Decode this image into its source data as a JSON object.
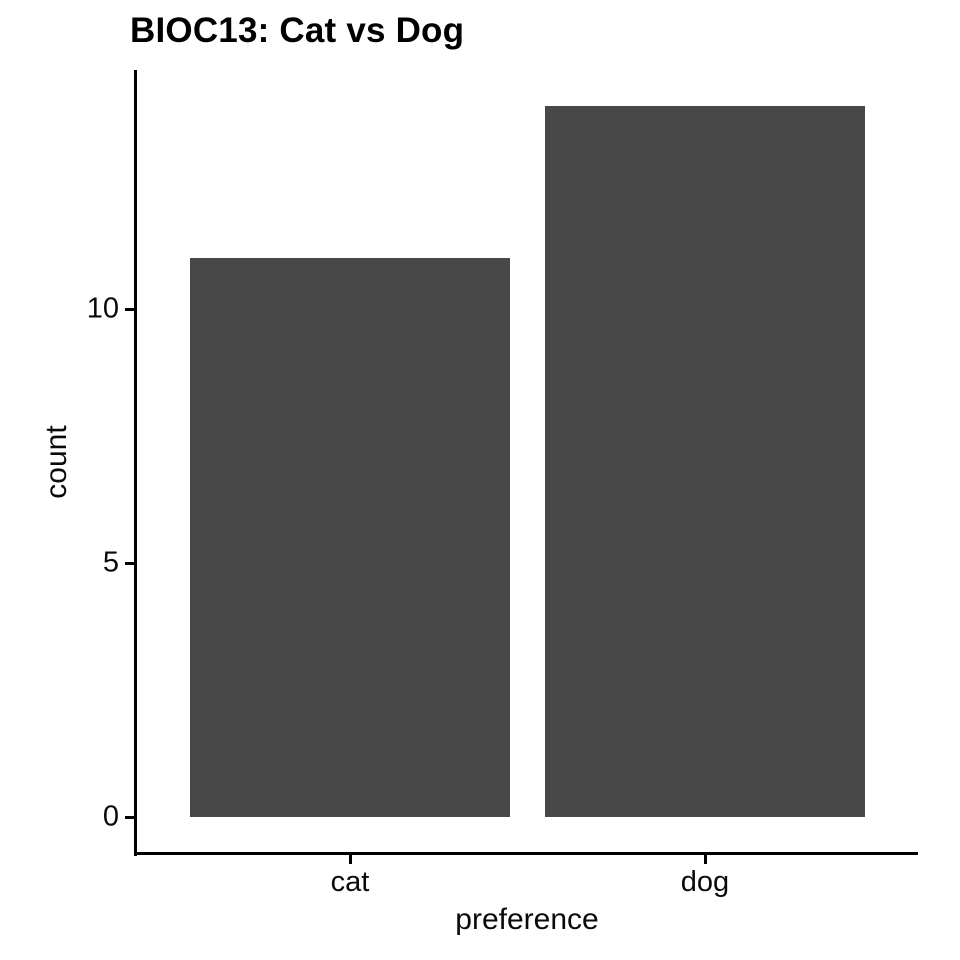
{
  "title": "BIOC13: Cat vs Dog",
  "colors": {
    "bar": "#484848",
    "axis": "#000000",
    "text": "#0a0a0a",
    "background": "#ffffff"
  },
  "chart_data": {
    "type": "bar",
    "title": "BIOC13: Cat vs Dog",
    "xlabel": "preference",
    "ylabel": "count",
    "categories": [
      "cat",
      "dog"
    ],
    "values": [
      11,
      14
    ],
    "y_ticks": [
      0,
      5,
      10
    ],
    "ylim": [
      -0.7,
      14.7
    ],
    "xlim": [
      0.4,
      2.6
    ],
    "bar_width": 0.9,
    "bar_color": "#484848",
    "grid": false,
    "legend": false,
    "orientation": "vertical"
  }
}
